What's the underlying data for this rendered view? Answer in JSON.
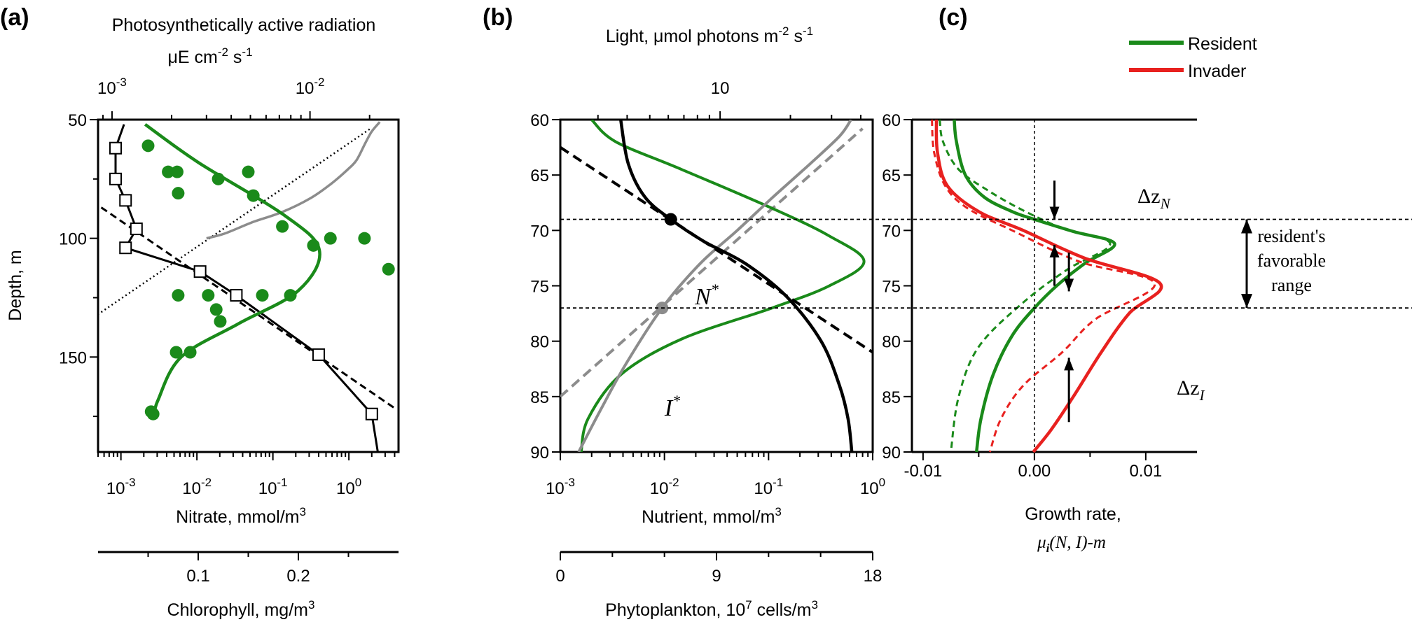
{
  "chart_data": [
    {
      "type": "line",
      "panel_label": "(a)",
      "top_axis": {
        "label_line1": "Photosynthetically active radiation",
        "label_line2": "μE cm",
        "label_sup": "-2",
        "label_tail": " s",
        "label_sup2": "-1",
        "scale": "log",
        "range": [
          0.00085,
          0.028
        ],
        "ticks": [
          {
            "v": 0.001,
            "m": "10",
            "e": "-3"
          },
          {
            "v": 0.01,
            "m": "10",
            "e": "-2"
          }
        ]
      },
      "y_axis": {
        "label": "Depth, m",
        "range": [
          50,
          190
        ],
        "ticks": [
          50,
          100,
          150
        ],
        "inverted": true
      },
      "x_axis_nitrate": {
        "label": "Nitrate, mmol/m",
        "label_sup": "3",
        "scale": "log",
        "range": [
          0.0005,
          4.5
        ],
        "ticks": [
          {
            "v": 0.001,
            "m": "10",
            "e": "-3"
          },
          {
            "v": 0.01,
            "m": "10",
            "e": "-2"
          },
          {
            "v": 0.1,
            "m": "10",
            "e": "-1"
          },
          {
            "v": 1,
            "m": "10",
            "e": "0"
          }
        ]
      },
      "x_axis_chlorophyll": {
        "label": "Chlorophyll, mg/m",
        "label_sup": "3",
        "range": [
          0,
          0.3
        ],
        "ticks": [
          0.1,
          0.2
        ]
      },
      "series": [
        {
          "kind": "nitrate_obs",
          "points": [
            [
              0.00085,
              62
            ],
            [
              0.00085,
              75
            ],
            [
              0.00115,
              84
            ],
            [
              0.0016,
              96
            ],
            [
              0.00115,
              104
            ],
            [
              0.011,
              114
            ],
            [
              0.033,
              124
            ],
            [
              0.4,
              149
            ],
            [
              2.0,
              174
            ]
          ]
        },
        {
          "kind": "nitrate_fit",
          "points": [
            [
              0.0011,
              52
            ],
            [
              0.00085,
              62
            ],
            [
              0.00085,
              75
            ],
            [
              0.00115,
              84
            ],
            [
              0.0016,
              96
            ],
            [
              0.00115,
              104
            ],
            [
              0.011,
              114
            ],
            [
              0.033,
              124
            ],
            [
              0.4,
              149
            ],
            [
              2.0,
              174
            ],
            [
              2.4,
              190
            ]
          ]
        },
        {
          "kind": "nitrate_trend",
          "points": [
            [
              0.00055,
              87
            ],
            [
              4.2,
              172
            ]
          ]
        },
        {
          "kind": "chlorophyll_obs",
          "points": [
            [
              0.05,
              61
            ],
            [
              0.07,
              72
            ],
            [
              0.079,
              72
            ],
            [
              0.08,
              81
            ],
            [
              0.12,
              75
            ],
            [
              0.15,
              72
            ],
            [
              0.155,
              82
            ],
            [
              0.184,
              95
            ],
            [
              0.215,
              103
            ],
            [
              0.232,
              100
            ],
            [
              0.266,
              100
            ],
            [
              0.29,
              113
            ],
            [
              0.08,
              124
            ],
            [
              0.11,
              124
            ],
            [
              0.164,
              124
            ],
            [
              0.192,
              124
            ],
            [
              0.118,
              130
            ],
            [
              0.122,
              135
            ],
            [
              0.078,
              148
            ],
            [
              0.092,
              148
            ],
            [
              0.055,
              174
            ],
            [
              0.053,
              173
            ]
          ]
        },
        {
          "kind": "chlorophyll_fit",
          "points": [
            [
              0.047,
              52
            ],
            [
              0.1,
              68
            ],
            [
              0.185,
              90
            ],
            [
              0.221,
              105
            ],
            [
              0.2,
              122
            ],
            [
              0.14,
              136
            ],
            [
              0.083,
              150
            ],
            [
              0.06,
              168
            ],
            [
              0.056,
              175
            ]
          ]
        },
        {
          "kind": "par_obs",
          "points": [
            [
              0.0225,
              51
            ],
            [
              0.0205,
              55
            ],
            [
              0.019,
              60
            ],
            [
              0.0172,
              67
            ],
            [
              0.0155,
              71
            ],
            [
              0.0128,
              77
            ],
            [
              0.0101,
              83
            ],
            [
              0.0072,
              89
            ],
            [
              0.0052,
              93
            ],
            [
              0.0037,
              98
            ],
            [
              0.003,
              100
            ]
          ]
        },
        {
          "kind": "par_trend",
          "points": [
            [
              0.02,
              54
            ],
            [
              0.00085,
              132
            ]
          ]
        }
      ]
    },
    {
      "type": "line",
      "panel_label": "(b)",
      "top_axis": {
        "label": "Light, μmol photons m",
        "label_sup": "-2",
        "label_tail": " s",
        "label_sup2": "-1",
        "scale": "log",
        "range": [
          2.07,
          45
        ],
        "ticks": [
          {
            "v": 10,
            "t": "10"
          }
        ]
      },
      "y_axis": {
        "range": [
          60,
          90
        ],
        "ticks": [
          60,
          65,
          70,
          75,
          80,
          85,
          90
        ],
        "inverted": true
      },
      "x_axis_nutrient": {
        "label": "Nutrient, mmol/m",
        "label_sup": "3",
        "scale": "log",
        "range": [
          0.001,
          1
        ],
        "ticks": [
          {
            "v": 0.001,
            "m": "10",
            "e": "-3"
          },
          {
            "v": 0.01,
            "m": "10",
            "e": "-2"
          },
          {
            "v": 0.1,
            "m": "10",
            "e": "-1"
          },
          {
            "v": 1,
            "m": "10",
            "e": "0"
          }
        ]
      },
      "x_axis_phytoplankton": {
        "label": "Phytoplankton, 10",
        "label_sup": "7",
        "label_tail": " cells/m",
        "label_sup2": "3",
        "range": [
          0,
          18
        ],
        "ticks": [
          0,
          9,
          18
        ]
      },
      "markers": [
        {
          "label": "N",
          "sup": "*",
          "x": 0.0115,
          "depth": 69,
          "color": "#000000"
        },
        {
          "label": "I",
          "sup": "*",
          "x": 0.0095,
          "depth": 77,
          "color": "#8c8c8c"
        }
      ],
      "hlines": [
        69,
        77
      ],
      "series": [
        {
          "kind": "nutrient",
          "points": [
            [
              0.0038,
              60
            ],
            [
              0.0045,
              64
            ],
            [
              0.0065,
              67
            ],
            [
              0.0115,
              69
            ],
            [
              0.024,
              71
            ],
            [
              0.06,
              73
            ],
            [
              0.15,
              76
            ],
            [
              0.32,
              80
            ],
            [
              0.48,
              84
            ],
            [
              0.58,
              87
            ],
            [
              0.63,
              90
            ]
          ]
        },
        {
          "kind": "nutrient_trend",
          "points": [
            [
              0.001,
              62.5
            ],
            [
              1,
              81
            ]
          ]
        },
        {
          "kind": "light",
          "points": [
            [
              0.0015,
              90
            ],
            [
              0.0025,
              86
            ],
            [
              0.0043,
              82
            ],
            [
              0.0095,
              77
            ],
            [
              0.022,
              73
            ],
            [
              0.05,
              70
            ],
            [
              0.11,
              67
            ],
            [
              0.25,
              64
            ],
            [
              0.48,
              61.5
            ],
            [
              0.62,
              60
            ]
          ]
        },
        {
          "kind": "light_trend",
          "points": [
            [
              0.001,
              85
            ],
            [
              0.8,
              60.8
            ]
          ]
        },
        {
          "kind": "phytoplankton",
          "points": [
            [
              1.8,
              60
            ],
            [
              3.2,
              62
            ],
            [
              7,
              64.5
            ],
            [
              12.2,
              68
            ],
            [
              15.5,
              70.5
            ],
            [
              17.5,
              72.8
            ],
            [
              15.5,
              75
            ],
            [
              12.2,
              77
            ],
            [
              7,
              79.8
            ],
            [
              3.5,
              83
            ],
            [
              1.6,
              87
            ],
            [
              1.2,
              90
            ]
          ]
        }
      ]
    },
    {
      "type": "line",
      "panel_label": "(c)",
      "legend": [
        {
          "name": "Resident",
          "color": "#1a8a1a"
        },
        {
          "name": "Invader",
          "color": "#e8211f"
        }
      ],
      "y_axis": {
        "range": [
          60,
          90
        ],
        "ticks": [
          60,
          65,
          70,
          75,
          80,
          85,
          90
        ],
        "inverted": true
      },
      "x_axis": {
        "label_line1": "Growth rate,",
        "label_line2_parts": [
          "μ",
          "i",
          "(N, I)-m"
        ],
        "range": [
          -0.011,
          0.0146
        ],
        "ticks": [
          {
            "v": -0.01,
            "t": "-0.01"
          },
          {
            "v": 0,
            "t": "0.00"
          },
          {
            "v": 0.01,
            "t": "0.01"
          }
        ]
      },
      "annotations": {
        "dz_n": {
          "base": "Δz",
          "sub": "N"
        },
        "dz_i": {
          "base": "Δz",
          "sub": "I"
        },
        "range_label": [
          "resident's",
          "favorable",
          "range"
        ]
      },
      "hlines": [
        69,
        77
      ],
      "series": [
        {
          "name": "Resident",
          "style": "solid",
          "points": [
            [
              -0.0072,
              60
            ],
            [
              -0.007,
              62
            ],
            [
              -0.0062,
              65
            ],
            [
              -0.0045,
              67
            ],
            [
              -0.002,
              68.3
            ],
            [
              0,
              69
            ],
            [
              0.0035,
              70.1
            ],
            [
              0.0072,
              71.2
            ],
            [
              0.0045,
              73
            ],
            [
              0.002,
              75
            ],
            [
              0,
              77
            ],
            [
              -0.002,
              79.5
            ],
            [
              -0.0037,
              83
            ],
            [
              -0.0048,
              87
            ],
            [
              -0.0052,
              90
            ]
          ]
        },
        {
          "name": "Resident",
          "style": "dashed",
          "points": [
            [
              -0.0085,
              60
            ],
            [
              -0.0082,
              62
            ],
            [
              -0.0068,
              64.5
            ],
            [
              -0.004,
              66.5
            ],
            [
              -0.001,
              68.2
            ],
            [
              0.0025,
              69.8
            ],
            [
              0.0068,
              71.2
            ],
            [
              0.003,
              73.5
            ],
            [
              -0.001,
              76.5
            ],
            [
              -0.005,
              80.5
            ],
            [
              -0.0068,
              85
            ],
            [
              -0.0075,
              90
            ]
          ]
        },
        {
          "name": "Invader",
          "style": "solid",
          "points": [
            [
              -0.0088,
              60
            ],
            [
              -0.0087,
              63
            ],
            [
              -0.0078,
              66
            ],
            [
              -0.005,
              68.3
            ],
            [
              -0.001,
              70
            ],
            [
              0.0045,
              72.5
            ],
            [
              0.0113,
              74.8
            ],
            [
              0.0085,
              77.5
            ],
            [
              0.006,
              81
            ],
            [
              0.0035,
              85
            ],
            [
              0.0015,
              88
            ],
            [
              -0.0001,
              90
            ]
          ]
        },
        {
          "name": "Invader",
          "style": "dashed",
          "points": [
            [
              -0.0092,
              60
            ],
            [
              -0.009,
              63
            ],
            [
              -0.008,
              66
            ],
            [
              -0.006,
              68
            ],
            [
              -0.002,
              70
            ],
            [
              0.004,
              72.8
            ],
            [
              0.0108,
              74.8
            ],
            [
              0.0055,
              78
            ],
            [
              0.0025,
              81
            ],
            [
              -0.001,
              84
            ],
            [
              -0.003,
              87
            ],
            [
              -0.004,
              90
            ]
          ]
        }
      ]
    }
  ]
}
